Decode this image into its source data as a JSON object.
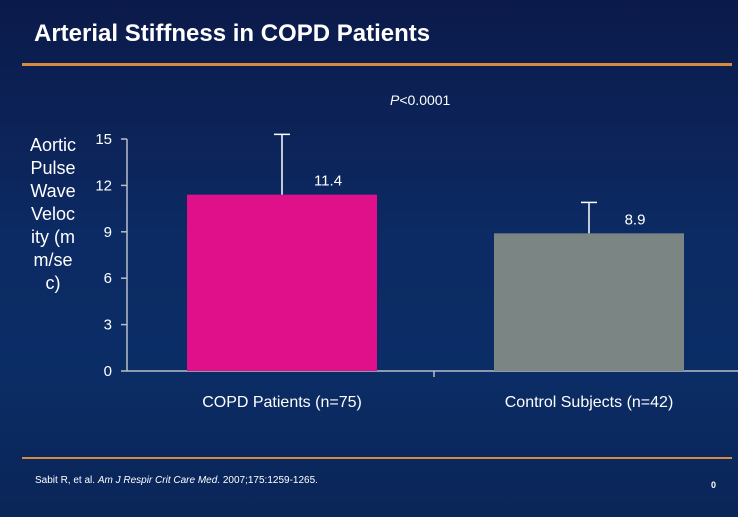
{
  "slide": {
    "title": "Arterial Stiffness in COPD Patients",
    "p_prefix": "P",
    "p_rest": "<0.0001",
    "footer_authors": "Sabit R, et al. ",
    "footer_journal": "Am J Respir Crit Care Med",
    "footer_rest": ". 2007;175:1259-1265.",
    "page_number": "0"
  },
  "colors": {
    "background": "#0c2a63",
    "rule": "#d98a3c",
    "copd_bar": "#e0108a",
    "control_bar": "#7a8584"
  },
  "chart_data": {
    "type": "bar",
    "ylabel": "Aortic Pulse Wave Velocity (mm/sec)",
    "xlabel": "",
    "ylim": [
      0,
      15
    ],
    "yticks": [
      0,
      3,
      6,
      9,
      12,
      15
    ],
    "categories": [
      "COPD Patients (n=75)",
      "Control Subjects (n=42)"
    ],
    "values": [
      11.4,
      8.9
    ],
    "data_labels": [
      "11.4",
      "8.9"
    ],
    "error_upper": [
      15.3,
      10.9
    ],
    "bar_colors": [
      "#e0108a",
      "#7a8584"
    ],
    "grid": false,
    "legend": "none",
    "annotation": "P<0.0001"
  }
}
